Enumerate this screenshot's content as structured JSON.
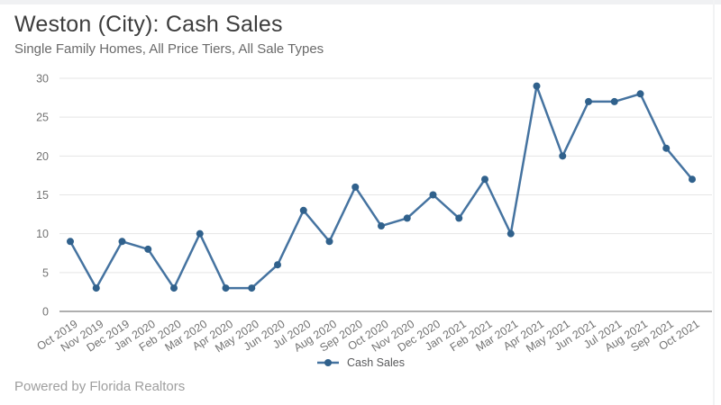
{
  "header": {
    "title": "Weston (City): Cash Sales",
    "subtitle": "Single Family Homes, All Price Tiers, All Sale Types"
  },
  "legend": {
    "label": "Cash Sales"
  },
  "footer": {
    "text": "Powered by Florida Realtors"
  },
  "chart_data": {
    "type": "line",
    "title": "Weston (City): Cash Sales",
    "subtitle": "Single Family Homes, All Price Tiers, All Sale Types",
    "categories": [
      "Oct 2019",
      "Nov 2019",
      "Dec 2019",
      "Jan 2020",
      "Feb 2020",
      "Mar 2020",
      "Apr 2020",
      "May 2020",
      "Jun 2020",
      "Jul 2020",
      "Aug 2020",
      "Sep 2020",
      "Oct 2020",
      "Nov 2020",
      "Dec 2020",
      "Jan 2021",
      "Feb 2021",
      "Mar 2021",
      "Apr 2021",
      "May 2021",
      "Jun 2021",
      "Jul 2021",
      "Aug 2021",
      "Sep 2021",
      "Oct 2021"
    ],
    "series": [
      {
        "name": "Cash Sales",
        "values": [
          9,
          3,
          9,
          8,
          3,
          10,
          3,
          3,
          6,
          13,
          9,
          16,
          11,
          12,
          15,
          12,
          17,
          10,
          29,
          20,
          27,
          27,
          28,
          21,
          17
        ]
      }
    ],
    "xlabel": "",
    "ylabel": "",
    "ylim": [
      0,
      30
    ],
    "yticks": [
      0,
      5,
      10,
      15,
      20,
      25,
      30
    ],
    "grid": "horizontal-only",
    "legend_position": "bottom-center",
    "colors": {
      "line": "#4573a0",
      "marker": "#30618c",
      "grid_line": "#e5e5e5",
      "axis_line": "#7f7f7f",
      "tick_text": "#737373"
    }
  }
}
